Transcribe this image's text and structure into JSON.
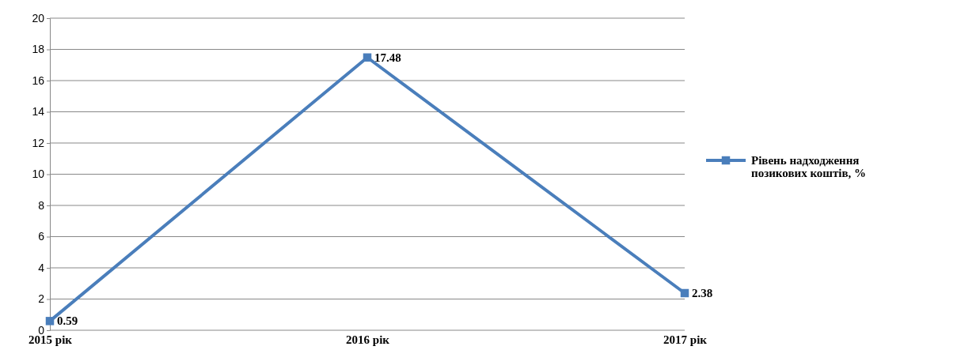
{
  "chart_data": {
    "type": "line",
    "categories": [
      "2015 рік",
      "2016 рік",
      "2017 рік"
    ],
    "series": [
      {
        "name": "Рівень надходження позикових коштів, %",
        "color": "#4a7ebb",
        "values": [
          0.59,
          17.48,
          2.38
        ]
      }
    ],
    "ylim": [
      0,
      20
    ],
    "yticks": [
      0,
      2,
      4,
      6,
      8,
      10,
      12,
      14,
      16,
      18,
      20
    ],
    "grid": "y",
    "legend": "right",
    "marker": "square",
    "line_style": "solid",
    "data_labels": true
  }
}
